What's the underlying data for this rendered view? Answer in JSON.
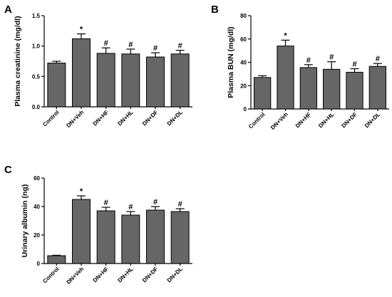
{
  "chart_data": [
    {
      "type": "bar",
      "panel_label": "A",
      "ylabel": "Plasma creatinine (mg/dl)",
      "xlabel": "",
      "ylim": [
        0,
        1.5
      ],
      "yticks": [
        "0.0",
        "0.5",
        "1.0",
        "1.5"
      ],
      "ytick_values": [
        0,
        0.5,
        1.0,
        1.5
      ],
      "categories": [
        "Control",
        "DN+Veh",
        "DN+HF",
        "DN+HL",
        "DN+DF",
        "DN+DL"
      ],
      "values": [
        0.72,
        1.12,
        0.88,
        0.87,
        0.82,
        0.87
      ],
      "errors": [
        0.03,
        0.08,
        0.09,
        0.08,
        0.07,
        0.06
      ],
      "markers": [
        "",
        "*",
        "#",
        "#",
        "#",
        "#"
      ]
    },
    {
      "type": "bar",
      "panel_label": "B",
      "ylabel": "Plasma BUN (mg/dl)",
      "xlabel": "",
      "ylim": [
        0,
        80
      ],
      "yticks": [
        "0",
        "20",
        "40",
        "60",
        "80"
      ],
      "ytick_values": [
        0,
        20,
        40,
        60,
        80
      ],
      "categories": [
        "Control",
        "DN+Veh",
        "DN+HF",
        "DN+HL",
        "DN+DF",
        "DN+DL"
      ],
      "values": [
        27,
        54,
        35.5,
        34,
        31.5,
        36.5
      ],
      "errors": [
        1.5,
        5,
        2.5,
        6.5,
        3,
        2.5
      ],
      "markers": [
        "",
        "*",
        "#",
        "#",
        "#",
        "#"
      ]
    },
    {
      "type": "bar",
      "panel_label": "C",
      "ylabel": "Urinary albumin (ng)",
      "xlabel": "",
      "ylim": [
        0,
        60
      ],
      "yticks": [
        "0",
        "20",
        "40",
        "60"
      ],
      "ytick_values": [
        0,
        20,
        40,
        60
      ],
      "categories": [
        "Control",
        "DN+Veh",
        "DN+HF",
        "DN+HL",
        "DN+DF",
        "DN+DL"
      ],
      "values": [
        5.5,
        45,
        37,
        34,
        37.5,
        36.5
      ],
      "errors": [
        0.3,
        2.5,
        2.5,
        2.5,
        2.5,
        2
      ],
      "markers": [
        "",
        "*",
        "#",
        "#",
        "#",
        "#"
      ]
    }
  ],
  "colors": {
    "bar_fill": "#666666",
    "stroke": "#000000"
  }
}
